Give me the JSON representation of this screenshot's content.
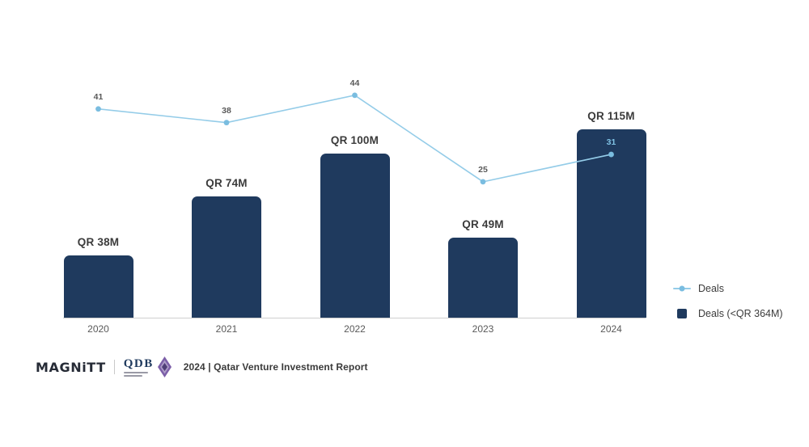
{
  "chart_data": {
    "type": "bar",
    "title": "",
    "categories": [
      "2020",
      "2021",
      "2022",
      "2023",
      "2024"
    ],
    "series": [
      {
        "name": "Deals (<QR 364M)",
        "kind": "bar",
        "values": [
          38,
          74,
          100,
          49,
          115
        ],
        "labels": [
          "QR 38M",
          "QR 74M",
          "QR 100M",
          "QR 49M",
          "QR 115M"
        ],
        "unit": "QR millions",
        "color": "#1f3a5e"
      },
      {
        "name": "Deals",
        "kind": "line",
        "values": [
          41,
          38,
          44,
          25,
          31
        ],
        "color": "#94cce8",
        "marker_color": "#7abde0"
      }
    ],
    "xlabel": "",
    "ylabel": "",
    "ylim": [
      0,
      150
    ],
    "grid": false,
    "legend_position": "right"
  },
  "legend": {
    "line_label": "Deals",
    "bar_label": "Deals (<QR 364M)"
  },
  "footer": {
    "magnitt": "MAGNiTT",
    "qdb": "QDB",
    "caption": "2024 | Qatar Venture Investment Report"
  },
  "colors": {
    "bar": "#1f3a5e",
    "line": "#94cce8",
    "marker": "#7abde0",
    "bar_value_label": "#3b3b3b",
    "point_label": "#595959",
    "point_label_on_bar": "#7fc2e4",
    "axis_line": "#cfcfcf",
    "tick_label": "#595959",
    "qdb_purple": "#7c5fa8",
    "qdb_purple_dark": "#4f3f77",
    "magnitt_navy": "#262b36"
  }
}
